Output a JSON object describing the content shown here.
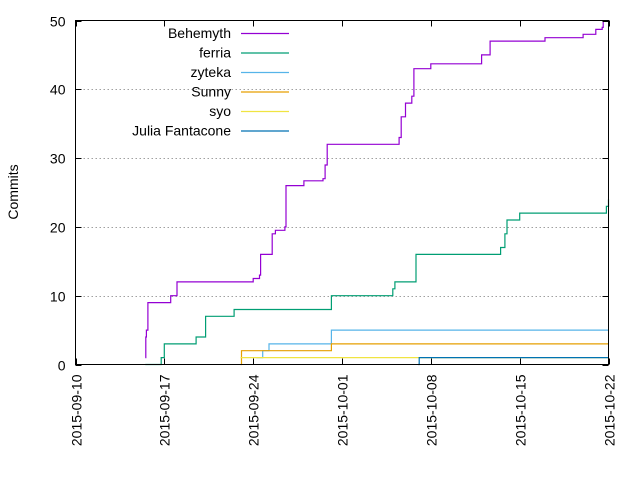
{
  "chart_data": {
    "type": "line",
    "title": "",
    "xlabel": "",
    "ylabel": "Commits",
    "xlim": [
      "2015-09-10",
      "2015-10-22"
    ],
    "ylim": [
      0,
      50
    ],
    "y_ticks": [
      0,
      10,
      20,
      30,
      40,
      50
    ],
    "x_ticks": [
      "2015-09-10",
      "2015-09-17",
      "2015-09-24",
      "2015-10-01",
      "2015-10-08",
      "2015-10-15",
      "2015-10-22"
    ],
    "x_tick_labels_rotated": true,
    "grid": "horizontal dotted",
    "legend_position": "top-left",
    "step": true,
    "series": [
      {
        "name": "Behemyth",
        "color": "#9400d3",
        "points": [
          [
            "2015-09-15T12:00",
            1
          ],
          [
            "2015-09-15T13:00",
            4
          ],
          [
            "2015-09-15T14:00",
            5
          ],
          [
            "2015-09-15T17:00",
            9
          ],
          [
            "2015-09-17T00:00",
            9
          ],
          [
            "2015-09-17T12:00",
            10
          ],
          [
            "2015-09-18T00:00",
            12
          ],
          [
            "2015-09-23T00:00",
            12
          ],
          [
            "2015-09-24T00:00",
            12.5
          ],
          [
            "2015-09-24T12:00",
            13
          ],
          [
            "2015-09-24T14:00",
            16
          ],
          [
            "2015-09-25T12:00",
            19
          ],
          [
            "2015-09-25T18:00",
            19.5
          ],
          [
            "2015-09-26T12:00",
            20
          ],
          [
            "2015-09-26T14:00",
            26
          ],
          [
            "2015-09-28T00:00",
            26.7
          ],
          [
            "2015-09-29T12:00",
            27
          ],
          [
            "2015-09-29T16:00",
            29
          ],
          [
            "2015-09-29T20:00",
            32
          ],
          [
            "2015-10-05T00:00",
            32
          ],
          [
            "2015-10-05T12:00",
            33
          ],
          [
            "2015-10-05T16:00",
            36
          ],
          [
            "2015-10-06T00:00",
            38
          ],
          [
            "2015-10-06T12:00",
            39
          ],
          [
            "2015-10-06T16:00",
            43
          ],
          [
            "2015-10-08T00:00",
            43.7
          ],
          [
            "2015-10-12T00:00",
            45
          ],
          [
            "2015-10-12T12:00",
            45
          ],
          [
            "2015-10-12T16:00",
            47
          ],
          [
            "2015-10-15T12:00",
            47
          ],
          [
            "2015-10-17T00:00",
            47.5
          ],
          [
            "2015-10-20T00:00",
            48
          ],
          [
            "2015-10-21T00:00",
            48.7
          ],
          [
            "2015-10-21T12:00",
            49
          ],
          [
            "2015-10-21T14:00",
            50
          ]
        ]
      },
      {
        "name": "ferria",
        "color": "#009e73",
        "points": [
          [
            "2015-09-15T12:00",
            0
          ],
          [
            "2015-09-16T18:00",
            1
          ],
          [
            "2015-09-17T00:00",
            3
          ],
          [
            "2015-09-18T00:00",
            3
          ],
          [
            "2015-09-19T12:00",
            4
          ],
          [
            "2015-09-20T00:00",
            4
          ],
          [
            "2015-09-20T06:00",
            7
          ],
          [
            "2015-09-22T12:00",
            8
          ],
          [
            "2015-09-30T00:00",
            8
          ],
          [
            "2015-09-30T04:00",
            10
          ],
          [
            "2015-10-05T00:00",
            11
          ],
          [
            "2015-10-05T04:00",
            12
          ],
          [
            "2015-10-06T18:00",
            12
          ],
          [
            "2015-10-06T20:00",
            16
          ],
          [
            "2015-10-13T00:00",
            16
          ],
          [
            "2015-10-13T12:00",
            17
          ],
          [
            "2015-10-13T20:00",
            19
          ],
          [
            "2015-10-14T00:00",
            21
          ],
          [
            "2015-10-15T00:00",
            22
          ],
          [
            "2015-10-21T00:00",
            22
          ],
          [
            "2015-10-21T20:00",
            23
          ],
          [
            "2015-10-22T00:00",
            24
          ]
        ]
      },
      {
        "name": "zyteka",
        "color": "#56b4e9",
        "points": [
          [
            "2015-09-24T06:00",
            1
          ],
          [
            "2015-09-24T18:00",
            2
          ],
          [
            "2015-09-25T06:00",
            3
          ],
          [
            "2015-09-30T00:00",
            3
          ],
          [
            "2015-09-30T04:00",
            5
          ],
          [
            "2015-10-22T00:00",
            5
          ]
        ]
      },
      {
        "name": "Sunny",
        "color": "#e69f00",
        "points": [
          [
            "2015-09-23T00:00",
            0
          ],
          [
            "2015-09-23T02:00",
            2
          ],
          [
            "2015-09-30T00:00",
            2
          ],
          [
            "2015-09-30T04:00",
            3
          ],
          [
            "2015-10-22T00:00",
            3
          ]
        ]
      },
      {
        "name": "syo",
        "color": "#f0e442",
        "points": [
          [
            "2015-09-23T00:00",
            1
          ],
          [
            "2015-10-22T00:00",
            1
          ]
        ]
      },
      {
        "name": "Julia Fantacone",
        "color": "#0072b2",
        "points": [
          [
            "2015-10-07T00:00",
            0
          ],
          [
            "2015-10-07T02:00",
            1
          ],
          [
            "2015-10-22T00:00",
            1
          ]
        ]
      }
    ]
  }
}
